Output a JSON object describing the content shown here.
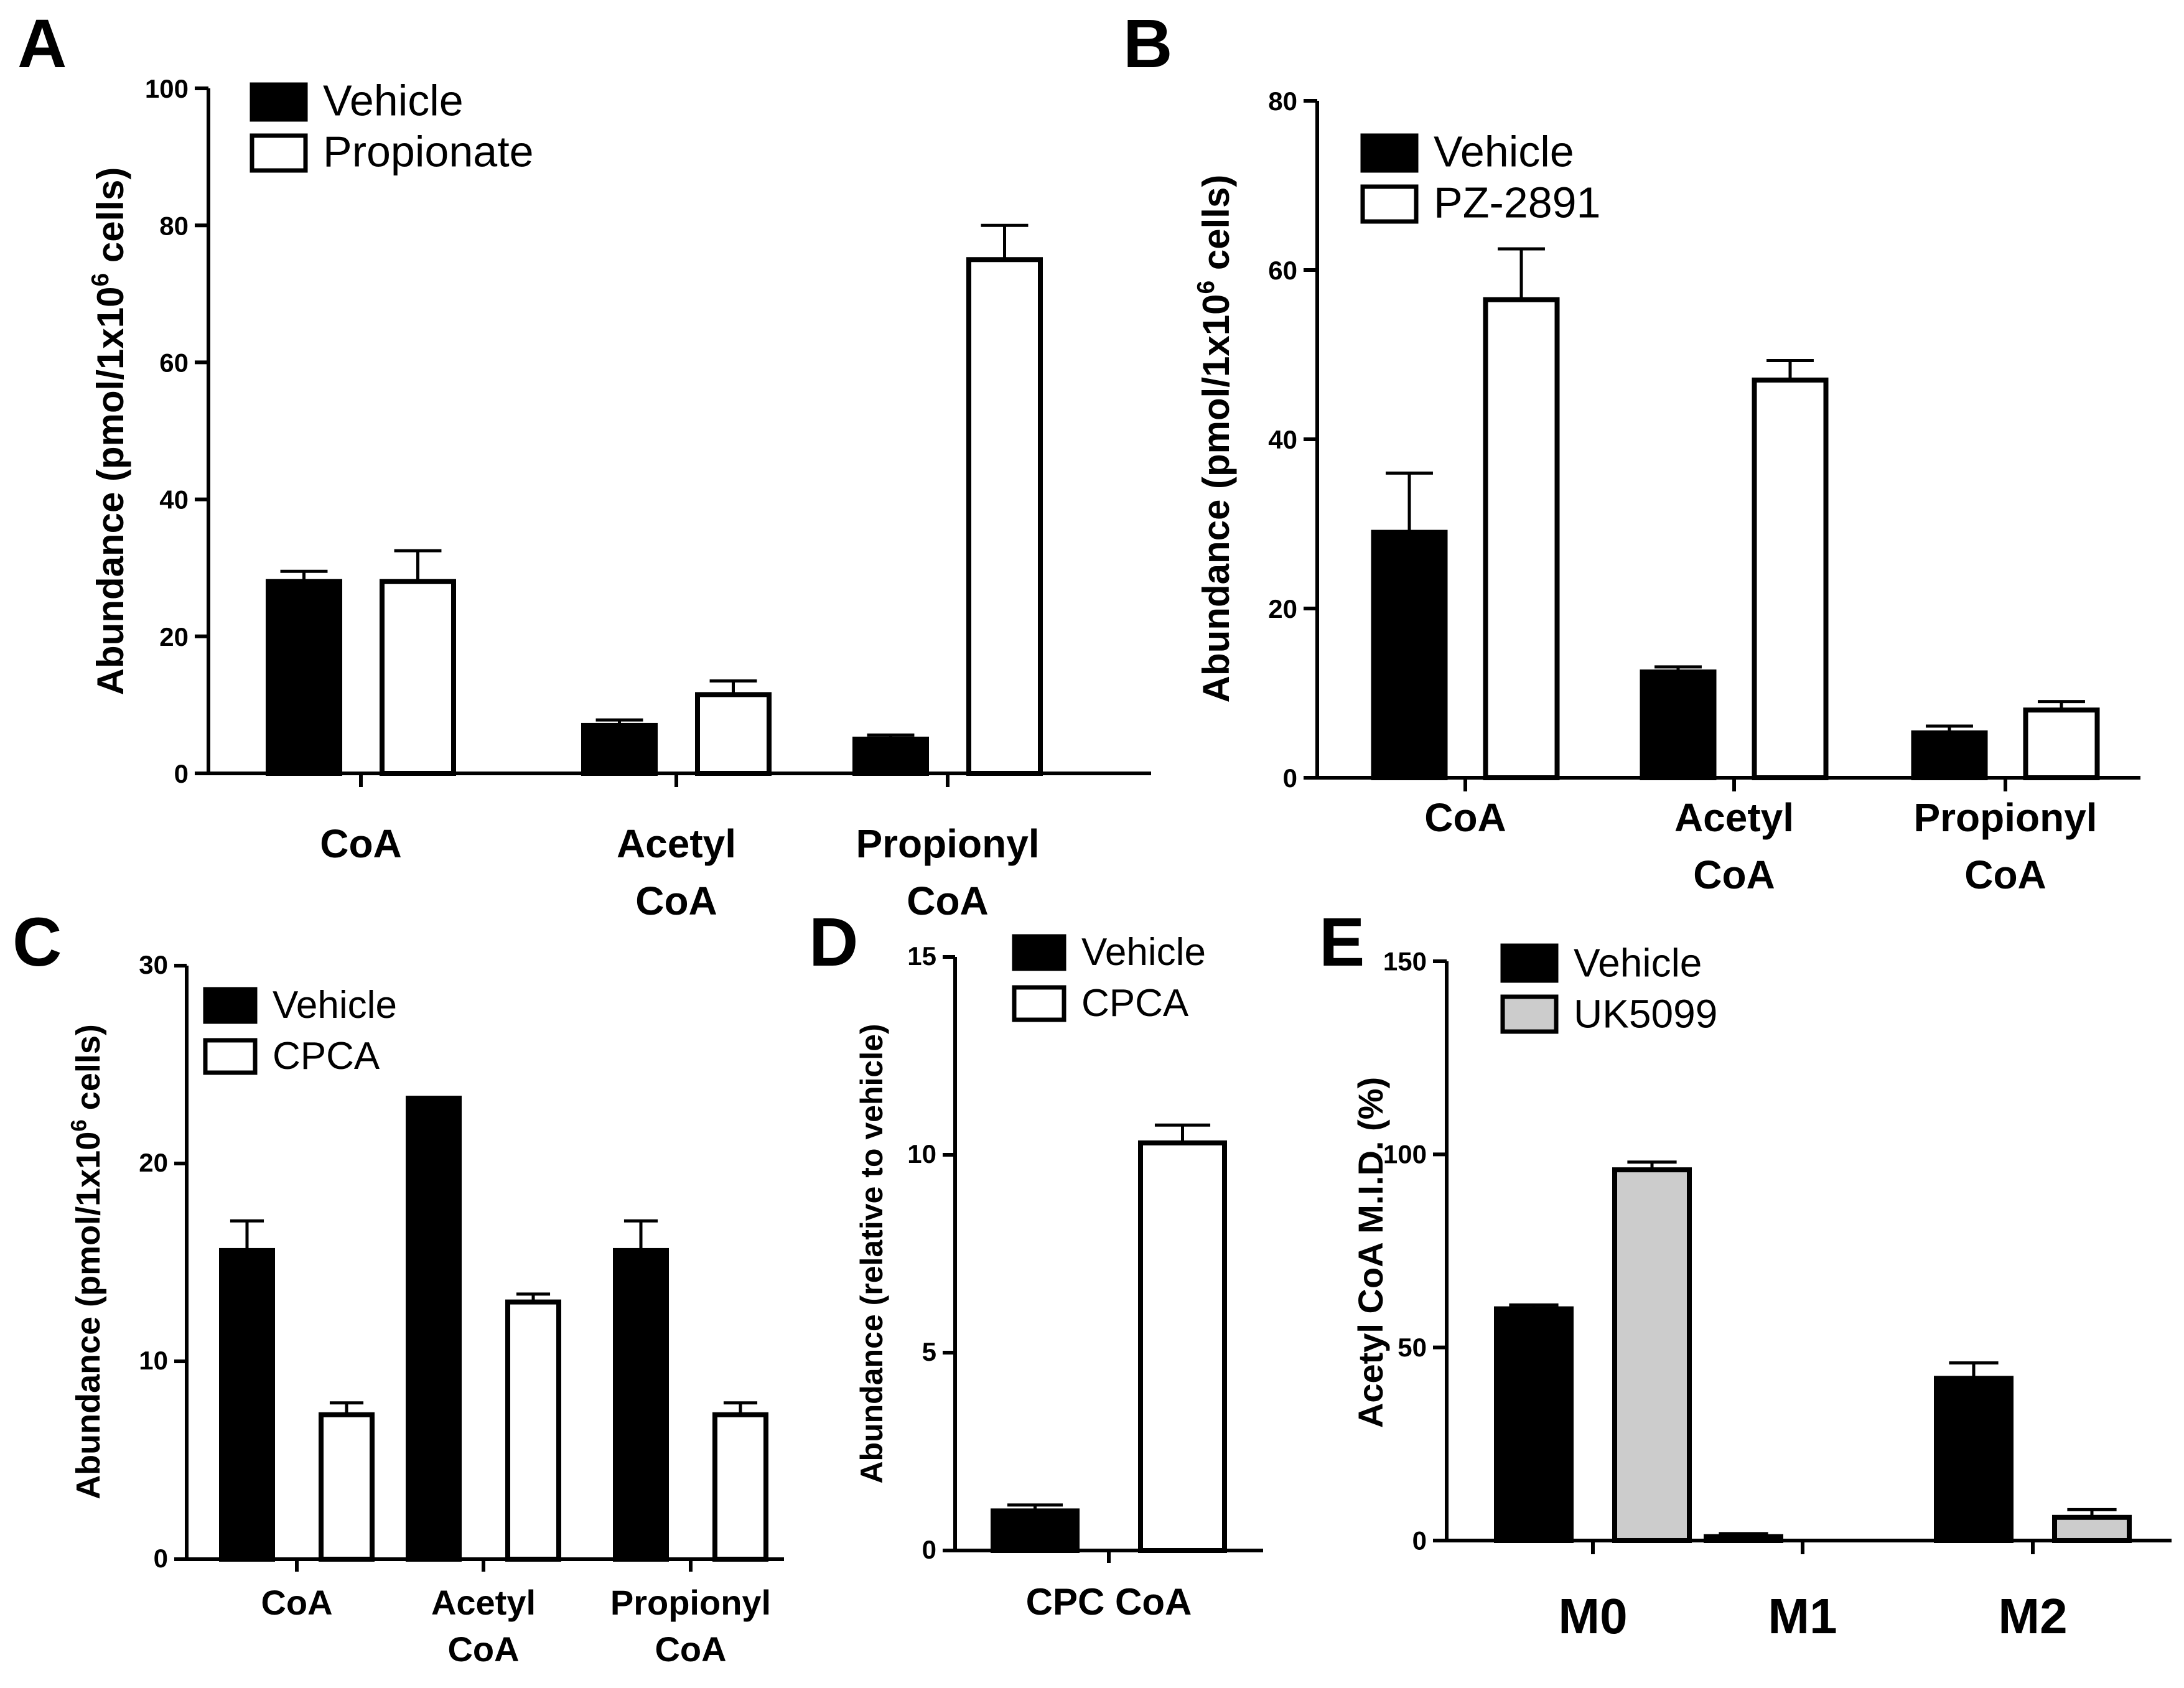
{
  "chart_data": [
    {
      "id": "A",
      "panel_label": "A",
      "type": "bar",
      "ylabel": "Abundance (pmol/1x10",
      "ylabel_sup": "6",
      "ylabel_tail": " cells)",
      "ylim": [
        0,
        100
      ],
      "yticks": [
        0,
        20,
        40,
        60,
        80,
        100
      ],
      "categories": [
        [
          "CoA"
        ],
        [
          "Acetyl",
          "CoA"
        ],
        [
          "Propionyl",
          "CoA"
        ]
      ],
      "series": [
        {
          "name": "Vehicle",
          "color": "#000000",
          "values": [
            28,
            7,
            5
          ],
          "errors": [
            1.5,
            0.8,
            0.6
          ]
        },
        {
          "name": "Propionate",
          "color": "#ffffff",
          "values": [
            28,
            11.5,
            75
          ],
          "errors": [
            4.5,
            2,
            5
          ]
        }
      ],
      "legend": "top-left"
    },
    {
      "id": "B",
      "panel_label": "B",
      "type": "bar",
      "ylabel": "Abundance (pmol/1x10",
      "ylabel_sup": "6",
      "ylabel_tail": " cells)",
      "ylim": [
        0,
        80
      ],
      "yticks": [
        0,
        20,
        40,
        60,
        80
      ],
      "categories": [
        [
          "CoA"
        ],
        [
          "Acetyl",
          "CoA"
        ],
        [
          "Propionyl",
          "CoA"
        ]
      ],
      "series": [
        {
          "name": "Vehicle",
          "color": "#000000",
          "values": [
            29,
            12.5,
            5.3
          ],
          "errors": [
            7,
            0.6,
            0.8
          ]
        },
        {
          "name": "PZ-2891",
          "color": "#ffffff",
          "values": [
            56.5,
            47,
            8
          ],
          "errors": [
            6,
            2.3,
            1
          ]
        }
      ],
      "legend": "top-left"
    },
    {
      "id": "C",
      "panel_label": "C",
      "type": "bar",
      "ylabel": "Abundance (pmol/1x10",
      "ylabel_sup": "6",
      "ylabel_tail": " cells)",
      "ylim": [
        0,
        30
      ],
      "yticks": [
        0,
        10,
        20,
        30
      ],
      "categories": [
        [
          "CoA"
        ],
        [
          "Acetyl",
          "CoA"
        ],
        [
          "Propionyl",
          "CoA"
        ]
      ],
      "series": [
        {
          "name": "Vehicle",
          "color": "#000000",
          "values": [
            15.6,
            23.3,
            15.6
          ],
          "errors": [
            1.5,
            0,
            1.5
          ]
        },
        {
          "name": "CPCA",
          "color": "#ffffff",
          "values": [
            7.3,
            13,
            7.3
          ],
          "errors": [
            0.6,
            0.4,
            0.6
          ]
        }
      ],
      "legend": "top-left"
    },
    {
      "id": "D",
      "panel_label": "D",
      "type": "bar",
      "ylabel": "Abundance (relative to vehicle)",
      "ylabel_sup": "",
      "ylabel_tail": "",
      "ylim": [
        0,
        15
      ],
      "yticks": [
        0,
        5,
        10,
        15
      ],
      "categories": [
        [
          "CPC CoA"
        ]
      ],
      "series": [
        {
          "name": "Vehicle",
          "color": "#000000",
          "values": [
            1
          ],
          "errors": [
            0.15
          ]
        },
        {
          "name": "CPCA",
          "color": "#ffffff",
          "values": [
            10.3
          ],
          "errors": [
            0.45
          ]
        }
      ],
      "legend": "top-left"
    },
    {
      "id": "E",
      "panel_label": "E",
      "type": "bar",
      "ylabel": "Acetyl CoA M.I.D. (%)",
      "ylabel_sup": "",
      "ylabel_tail": "",
      "ylim": [
        0,
        150
      ],
      "yticks": [
        0,
        50,
        100,
        150
      ],
      "categories": [
        [
          "M0"
        ],
        [
          "M1"
        ],
        [
          "M2"
        ]
      ],
      "series": [
        {
          "name": "Vehicle",
          "color": "#000000",
          "values": [
            60,
            1,
            42
          ],
          "errors": [
            1,
            0.8,
            4
          ]
        },
        {
          "name": "UK5099",
          "color": "#cccccc",
          "values": [
            96,
            0,
            6
          ],
          "errors": [
            2,
            0,
            2
          ]
        }
      ],
      "legend": "top-left"
    }
  ]
}
